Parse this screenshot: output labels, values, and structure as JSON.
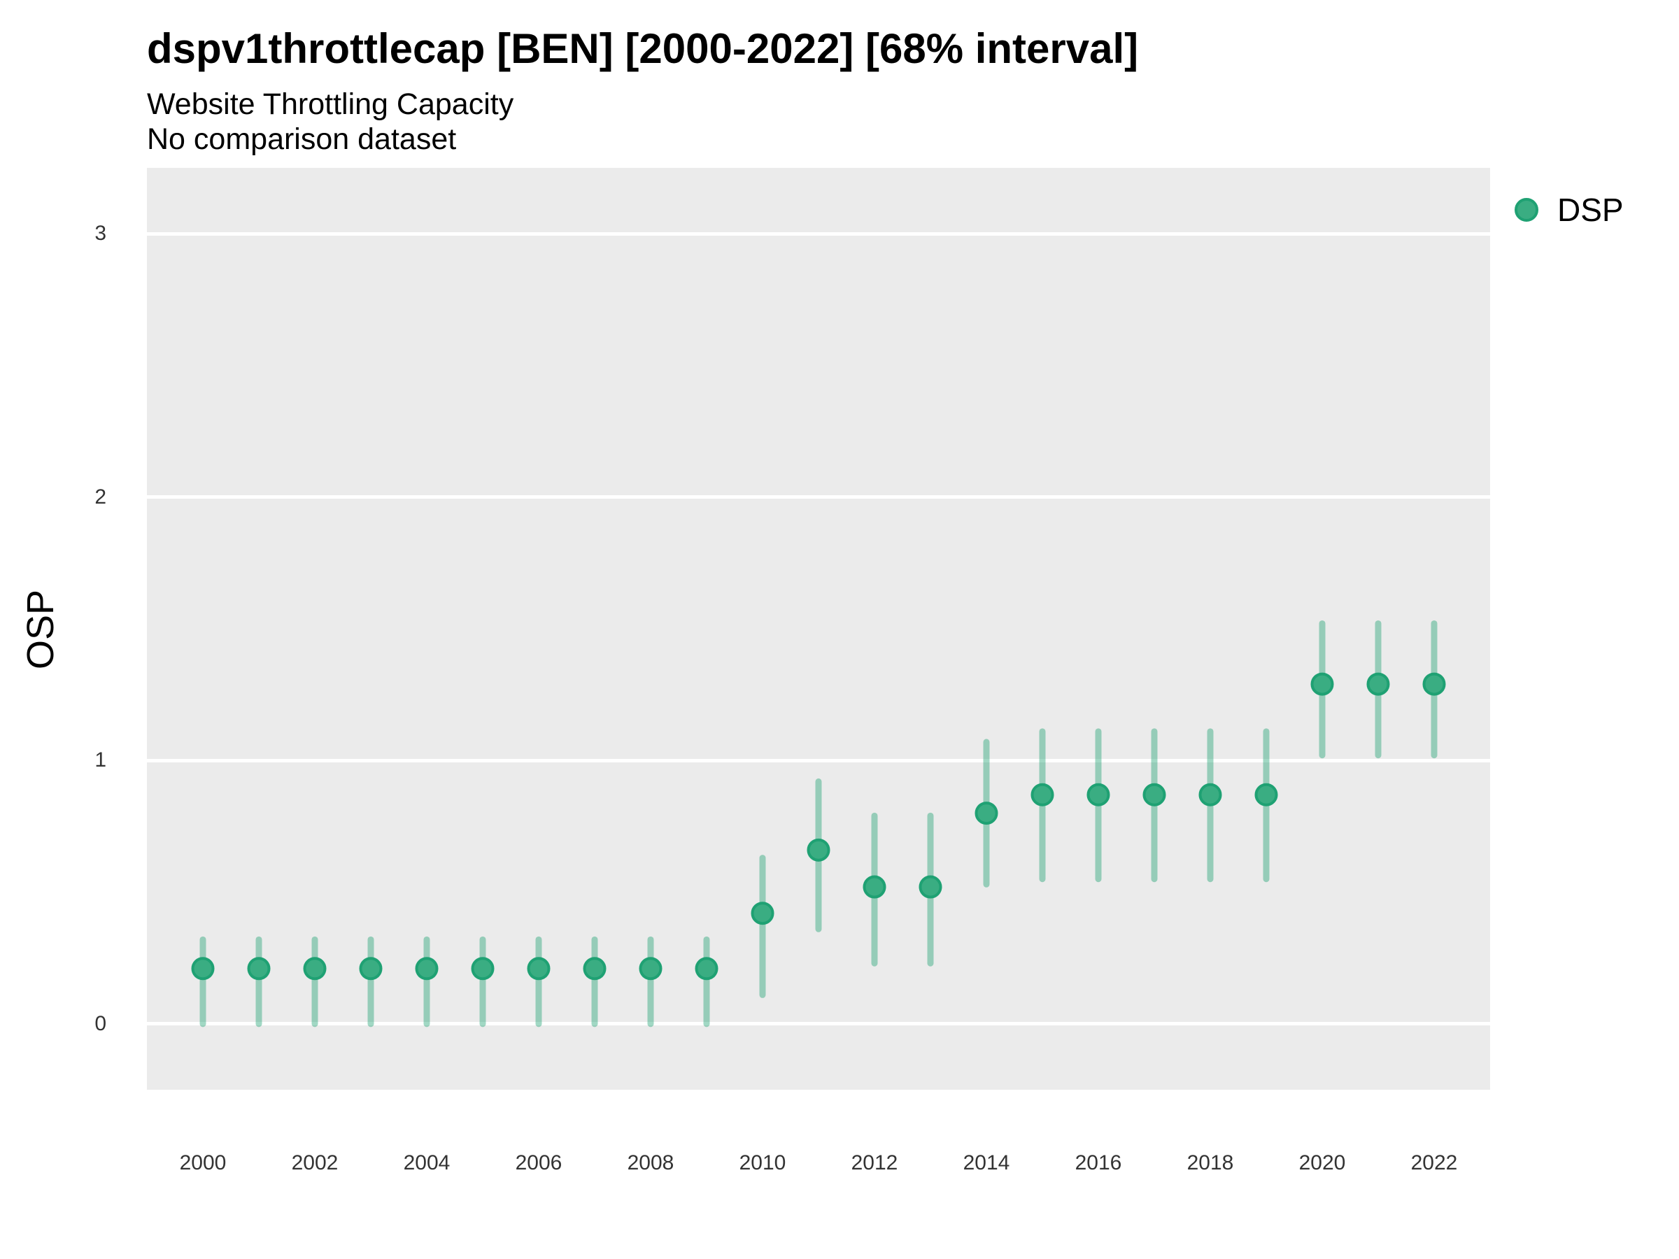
{
  "chart_data": {
    "type": "scatter",
    "title": "dspv1throttlecap [BEN] [2000-2022] [68% interval]",
    "subtitle": "Website Throttling Capacity",
    "annotation": "No comparison dataset",
    "xlabel": "",
    "ylabel": "OSP",
    "xlim": [
      1999,
      2023
    ],
    "ylim": [
      -0.25,
      3.25
    ],
    "xticks": [
      2000,
      2002,
      2004,
      2006,
      2008,
      2010,
      2012,
      2014,
      2016,
      2018,
      2020,
      2022
    ],
    "yticks": [
      0,
      1,
      2,
      3
    ],
    "grid": "horizontal white major gridlines on gray panel, no vertical gridlines",
    "legend_position": "right-top",
    "interval_level": "68%",
    "colors": {
      "panel_background": "#EBEBEB",
      "gridline": "#FFFFFF",
      "point_fill": "#3AAD82",
      "point_edge": "#1FA173",
      "interval_line": "rgba(31,161,115,0.42)"
    },
    "series": [
      {
        "name": "DSP",
        "marker": "circle",
        "error_bars": true,
        "points": [
          {
            "x": 2000,
            "y": 0.21,
            "lo": 0.0,
            "hi": 0.32
          },
          {
            "x": 2001,
            "y": 0.21,
            "lo": 0.0,
            "hi": 0.32
          },
          {
            "x": 2002,
            "y": 0.21,
            "lo": 0.0,
            "hi": 0.32
          },
          {
            "x": 2003,
            "y": 0.21,
            "lo": 0.0,
            "hi": 0.32
          },
          {
            "x": 2004,
            "y": 0.21,
            "lo": 0.0,
            "hi": 0.32
          },
          {
            "x": 2005,
            "y": 0.21,
            "lo": 0.0,
            "hi": 0.32
          },
          {
            "x": 2006,
            "y": 0.21,
            "lo": 0.0,
            "hi": 0.32
          },
          {
            "x": 2007,
            "y": 0.21,
            "lo": 0.0,
            "hi": 0.32
          },
          {
            "x": 2008,
            "y": 0.21,
            "lo": 0.0,
            "hi": 0.32
          },
          {
            "x": 2009,
            "y": 0.21,
            "lo": 0.0,
            "hi": 0.32
          },
          {
            "x": 2010,
            "y": 0.42,
            "lo": 0.11,
            "hi": 0.63
          },
          {
            "x": 2011,
            "y": 0.66,
            "lo": 0.36,
            "hi": 0.92
          },
          {
            "x": 2012,
            "y": 0.52,
            "lo": 0.23,
            "hi": 0.79
          },
          {
            "x": 2013,
            "y": 0.52,
            "lo": 0.23,
            "hi": 0.79
          },
          {
            "x": 2014,
            "y": 0.8,
            "lo": 0.53,
            "hi": 1.07
          },
          {
            "x": 2015,
            "y": 0.87,
            "lo": 0.55,
            "hi": 1.11
          },
          {
            "x": 2016,
            "y": 0.87,
            "lo": 0.55,
            "hi": 1.11
          },
          {
            "x": 2017,
            "y": 0.87,
            "lo": 0.55,
            "hi": 1.11
          },
          {
            "x": 2018,
            "y": 0.87,
            "lo": 0.55,
            "hi": 1.11
          },
          {
            "x": 2019,
            "y": 0.87,
            "lo": 0.55,
            "hi": 1.11
          },
          {
            "x": 2020,
            "y": 1.29,
            "lo": 1.02,
            "hi": 1.52
          },
          {
            "x": 2021,
            "y": 1.29,
            "lo": 1.02,
            "hi": 1.52
          },
          {
            "x": 2022,
            "y": 1.29,
            "lo": 1.02,
            "hi": 1.52
          }
        ]
      }
    ]
  }
}
